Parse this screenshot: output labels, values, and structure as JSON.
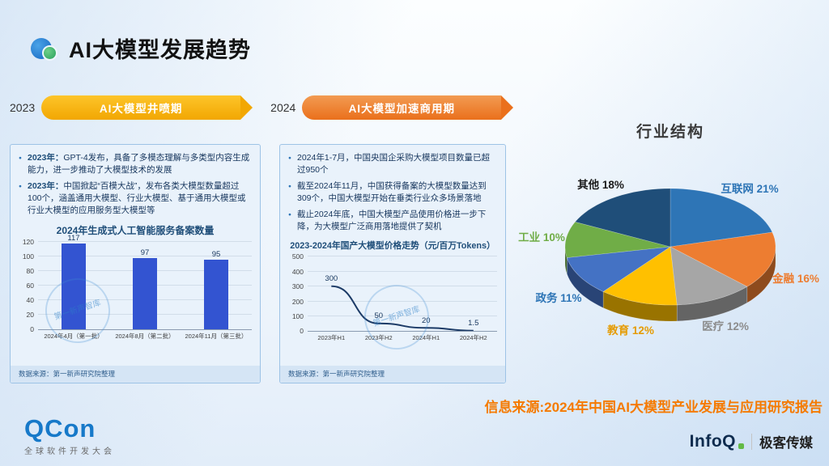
{
  "header": {
    "title": "AI大模型发展趋势"
  },
  "timeline": {
    "items": [
      {
        "year": "2023",
        "label": "AI大模型井喷期",
        "color_from": "#fdc52a",
        "color_to": "#f2a702",
        "tip_color": "#f2a702"
      },
      {
        "year": "2024",
        "label": "AI大模型加速商用期",
        "color_from": "#f29b52",
        "color_to": "#ea701c",
        "tip_color": "#ea701c"
      }
    ]
  },
  "cards": [
    {
      "bullets": [
        {
          "prefix": "2023年：",
          "text": "GPT-4发布，具备了多模态理解与多类型内容生成能力，进一步推动了大模型技术的发展"
        },
        {
          "prefix": "2023年：",
          "text": "中国掀起“百模大战”，发布各类大模型数量超过100个，涵盖通用大模型、行业大模型、基于通用大模型或行业大模型的应用服务型大模型等"
        }
      ],
      "source": "数据来源：第一新声研究院整理"
    },
    {
      "bullets": [
        {
          "prefix": "",
          "text": "2024年1-7月，中国央国企采购大模型项目数量已超过950个"
        },
        {
          "prefix": "",
          "text": "截至2024年11月，中国获得备案的大模型数量达到309个，中国大模型开始在垂类行业众多场景落地"
        },
        {
          "prefix": "",
          "text": "截止2024年底，中国大模型产品使用价格进一步下降，为大模型广泛商用落地提供了契机"
        }
      ],
      "source": "数据来源：第一新声研究院整理"
    }
  ],
  "chart_data": [
    {
      "type": "bar",
      "title": "2024年生成式人工智能服务备案数量",
      "categories": [
        "2024年4月（第一批）",
        "2024年8月（第二批）",
        "2024年11月（第三批）"
      ],
      "values": [
        117,
        97,
        95
      ],
      "ylim": [
        0,
        120
      ],
      "ytick_step": 20,
      "bar_color": "#3354d1",
      "grid": true,
      "legend": "none"
    },
    {
      "type": "line",
      "title": "2023-2024年国产大模型价格走势（元/百万Tokens）",
      "categories": [
        "2023年H1",
        "2023年H2",
        "2024年H1",
        "2024年H2"
      ],
      "values": [
        300,
        50,
        20,
        1.5
      ],
      "ylim": [
        0,
        500
      ],
      "ytick_step": 100,
      "line_color": "#1b3a66",
      "grid": true,
      "legend": "none"
    },
    {
      "type": "pie",
      "title": "行业结构",
      "style": "3d",
      "slices": [
        {
          "label": "互联网",
          "pct": 21,
          "color": "#2e75b6",
          "label_color": "#2e75b6"
        },
        {
          "label": "金融",
          "pct": 16,
          "color": "#ed7d31",
          "label_color": "#ed7d31"
        },
        {
          "label": "医疗",
          "pct": 12,
          "color": "#a6a6a6",
          "label_color": "#8c8c8c"
        },
        {
          "label": "教育",
          "pct": 12,
          "color": "#ffc000",
          "label_color": "#e59b00"
        },
        {
          "label": "政务",
          "pct": 11,
          "color": "#4472c4",
          "label_color": "#2e75b6"
        },
        {
          "label": "工业",
          "pct": 10,
          "color": "#70ad47",
          "label_color": "#70ad47"
        },
        {
          "label": "其他",
          "pct": 18,
          "color": "#1f4e79",
          "label_color": "#1a1a1a"
        }
      ]
    }
  ],
  "watermark": "第一新声智库",
  "source_note": "信息来源:2024年中国AI大模型产业发展与应用研究报告",
  "footer": {
    "qcon_name": "QCon",
    "qcon_subtitle": "全球软件开发大会",
    "infoq_name": "InfoQ",
    "infoq_partner": "极客传媒"
  }
}
